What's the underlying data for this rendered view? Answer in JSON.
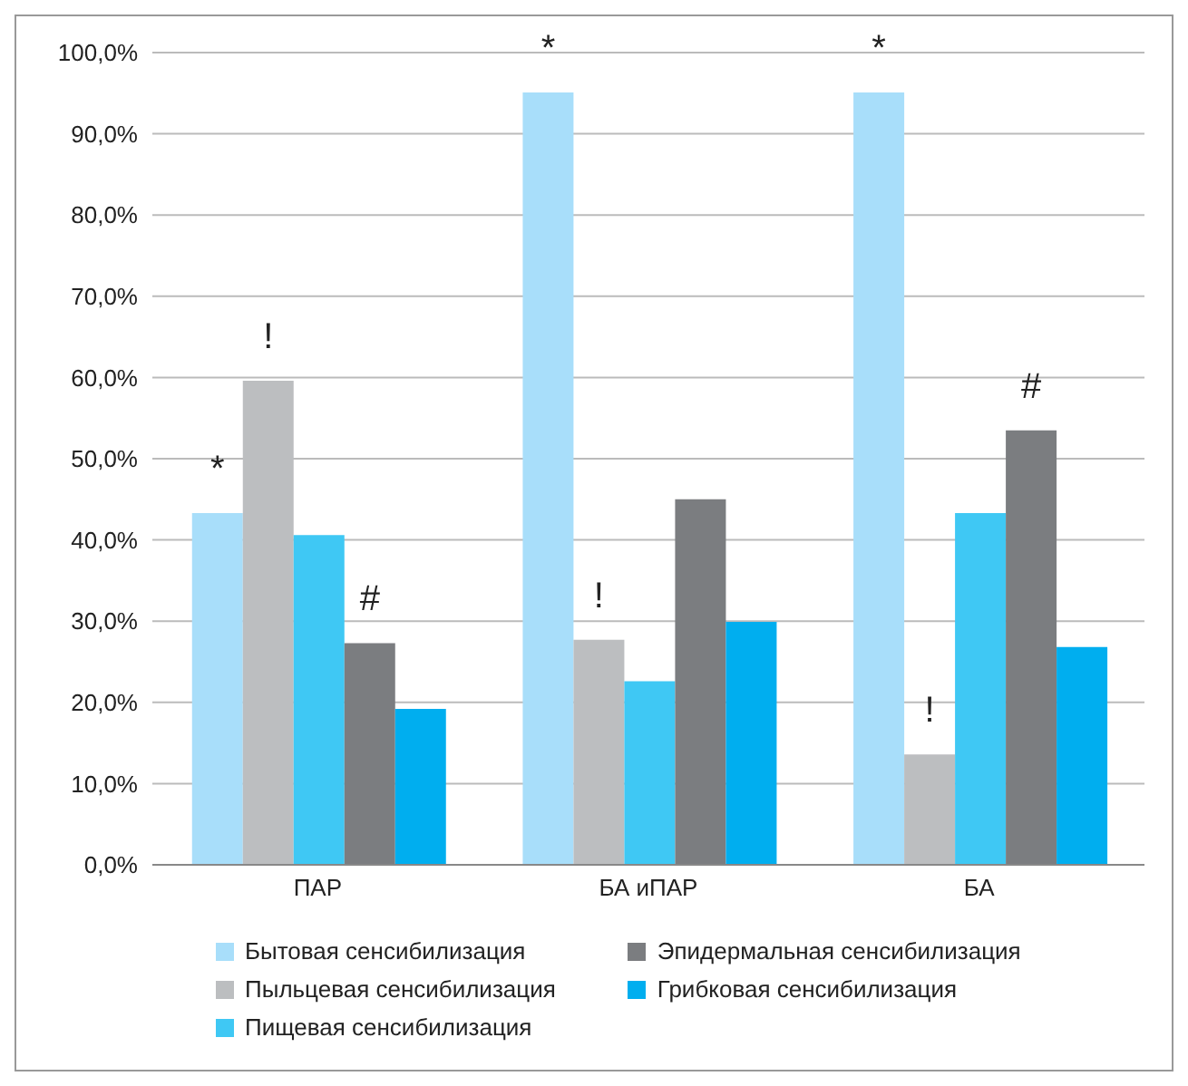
{
  "chart_data": {
    "type": "bar",
    "categories": [
      "ПАР",
      "БА иПАР",
      "БА"
    ],
    "series": [
      {
        "name": "Бытовая сенсибилизация",
        "color": "#a8defa",
        "values": [
          43.3,
          95.1,
          95.1
        ],
        "value_labels": [
          "*",
          "*",
          "*"
        ]
      },
      {
        "name": "Пыльцевая сенсибилизация",
        "color": "#bcbec0",
        "values": [
          59.6,
          27.7,
          13.6
        ],
        "value_labels": [
          "!",
          "!",
          "!"
        ]
      },
      {
        "name": "Пищевая сенсибилизация",
        "color": "#3fc8f4",
        "values": [
          40.6,
          22.6,
          43.3
        ]
      },
      {
        "name": "Эпидермальная сенсибилизация",
        "color": "#7b7d80",
        "values": [
          27.3,
          45.0,
          53.5
        ],
        "value_labels": [
          "#",
          null,
          "#"
        ]
      },
      {
        "name": "Грибковая сенсибилизация",
        "color": "#00aeef",
        "values": [
          19.2,
          29.9,
          26.8
        ]
      }
    ],
    "ylim": [
      0,
      100
    ],
    "yticks": [
      {
        "value": 0,
        "label": "0,0%"
      },
      {
        "value": 10,
        "label": "10,0%"
      },
      {
        "value": 20,
        "label": "20,0%"
      },
      {
        "value": 30,
        "label": "30,0%"
      },
      {
        "value": 40,
        "label": "40,0%"
      },
      {
        "value": 50,
        "label": "50,0%"
      },
      {
        "value": 60,
        "label": "60,0%"
      },
      {
        "value": 70,
        "label": "70,0%"
      },
      {
        "value": 80,
        "label": "80,0%"
      },
      {
        "value": 90,
        "label": "90,0%"
      },
      {
        "value": 100,
        "label": "100,0%"
      }
    ],
    "grid": "y",
    "legend": "bottom"
  }
}
